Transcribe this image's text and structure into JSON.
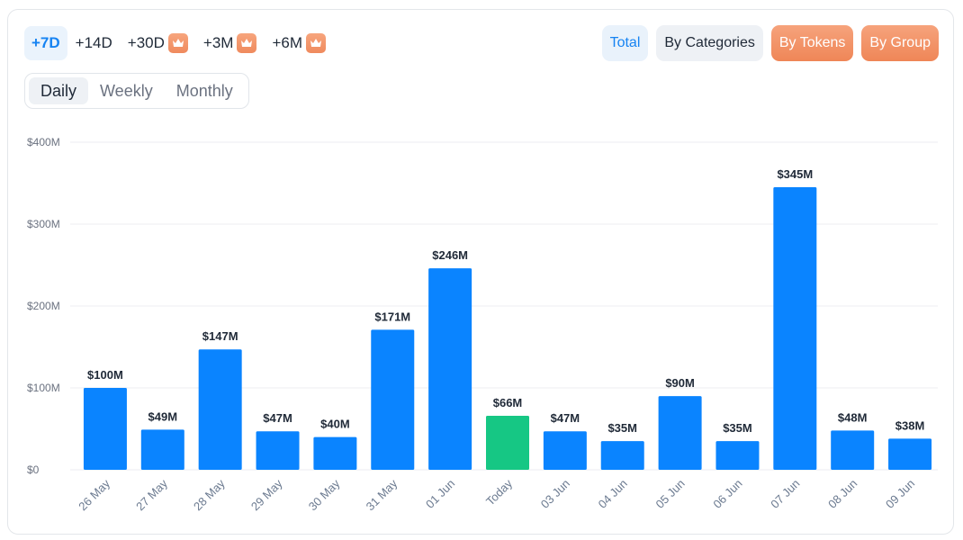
{
  "ranges": [
    {
      "label": "+7D",
      "active": true,
      "premium": false
    },
    {
      "label": "+14D",
      "active": false,
      "premium": false
    },
    {
      "label": "+30D",
      "active": false,
      "premium": true
    },
    {
      "label": "+3M",
      "active": false,
      "premium": true
    },
    {
      "label": "+6M",
      "active": false,
      "premium": true
    }
  ],
  "views": [
    {
      "label": "Daily",
      "active": true
    },
    {
      "label": "Weekly",
      "active": false
    },
    {
      "label": "Monthly",
      "active": false
    }
  ],
  "modes": [
    {
      "label": "Total",
      "style": "total"
    },
    {
      "label": "By Categories",
      "style": "cat"
    },
    {
      "label": "By Tokens",
      "style": "hot"
    },
    {
      "label": "By Group",
      "style": "hot"
    }
  ],
  "colors": {
    "bar": "#0a84ff",
    "today_bar": "#16c784",
    "today_label": "#16c784",
    "premium": "#ef8a5d",
    "accent": "#1683f2"
  },
  "chart_data": {
    "type": "bar",
    "categories": [
      "26 May",
      "27 May",
      "28 May",
      "29 May",
      "30 May",
      "31 May",
      "01 Jun",
      "Today",
      "03 Jun",
      "04 Jun",
      "05 Jun",
      "06 Jun",
      "07 Jun",
      "08 Jun",
      "09 Jun"
    ],
    "values": [
      100,
      49,
      147,
      47,
      40,
      171,
      246,
      66,
      47,
      35,
      90,
      35,
      345,
      48,
      38
    ],
    "value_labels": [
      "$100M",
      "$49M",
      "$147M",
      "$47M",
      "$40M",
      "$171M",
      "$246M",
      "$66M",
      "$47M",
      "$35M",
      "$90M",
      "$35M",
      "$345M",
      "$48M",
      "$38M"
    ],
    "highlight_index": 7,
    "y_ticks": [
      0,
      100,
      200,
      300,
      400
    ],
    "y_tick_labels": [
      "$0",
      "$100M",
      "$200M",
      "$300M",
      "$400M"
    ],
    "ylim": [
      0,
      400
    ],
    "grid": true,
    "title": "",
    "xlabel": "",
    "ylabel": ""
  }
}
